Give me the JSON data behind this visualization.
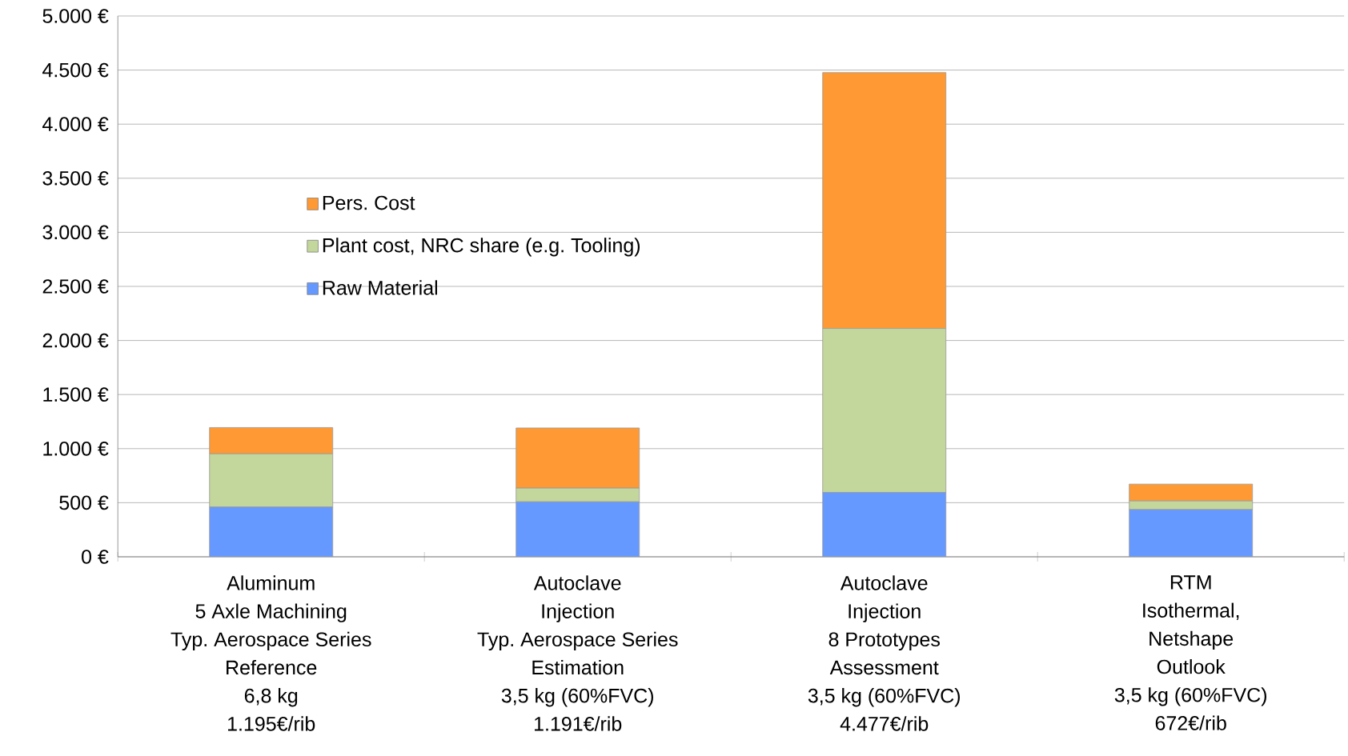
{
  "chart_data": {
    "type": "bar",
    "stacked": true,
    "categories": [
      "Aluminum\n5 Axle Machining\nTyp. Aerospace Series\nReference\n6,8 kg\n1.195€/rib",
      "Autoclave\nInjection\nTyp. Aerospace Series\nEstimation\n3,5 kg (60%FVC)\n1.191€/rib",
      "Autoclave\nInjection\n8 Prototypes\nAssessment\n3,5 kg  (60%FVC)\n4.477€/rib",
      "RTM\nIsothermal,\nNetshape\nOutlook\n3,5 kg  (60%FVC)\n672€/rib"
    ],
    "series": [
      {
        "name": "Raw Material",
        "color": "#6699ff",
        "values": [
          460,
          508,
          595,
          437
        ]
      },
      {
        "name": "Plant cost, NRC share (e.g. Tooling)",
        "color": "#c3d69b",
        "values": [
          492,
          127,
          1516,
          79
        ]
      },
      {
        "name": "Pers. Cost",
        "color": "#ff9933",
        "values": [
          243,
          556,
          2366,
          156
        ]
      }
    ],
    "ylim": [
      0,
      5000
    ],
    "yticks": [
      {
        "value": 0,
        "label": "0 €"
      },
      {
        "value": 500,
        "label": "500 €"
      },
      {
        "value": 1000,
        "label": "1.000 €"
      },
      {
        "value": 1500,
        "label": "1.500 €"
      },
      {
        "value": 2000,
        "label": "2.000 €"
      },
      {
        "value": 2500,
        "label": "2.500 €"
      },
      {
        "value": 3000,
        "label": "3.000 €"
      },
      {
        "value": 3500,
        "label": "3.500 €"
      },
      {
        "value": 4000,
        "label": "4.000 €"
      },
      {
        "value": 4500,
        "label": "4.500 €"
      },
      {
        "value": 5000,
        "label": "5.000 €"
      }
    ],
    "grid": "y",
    "legend": "top left"
  }
}
